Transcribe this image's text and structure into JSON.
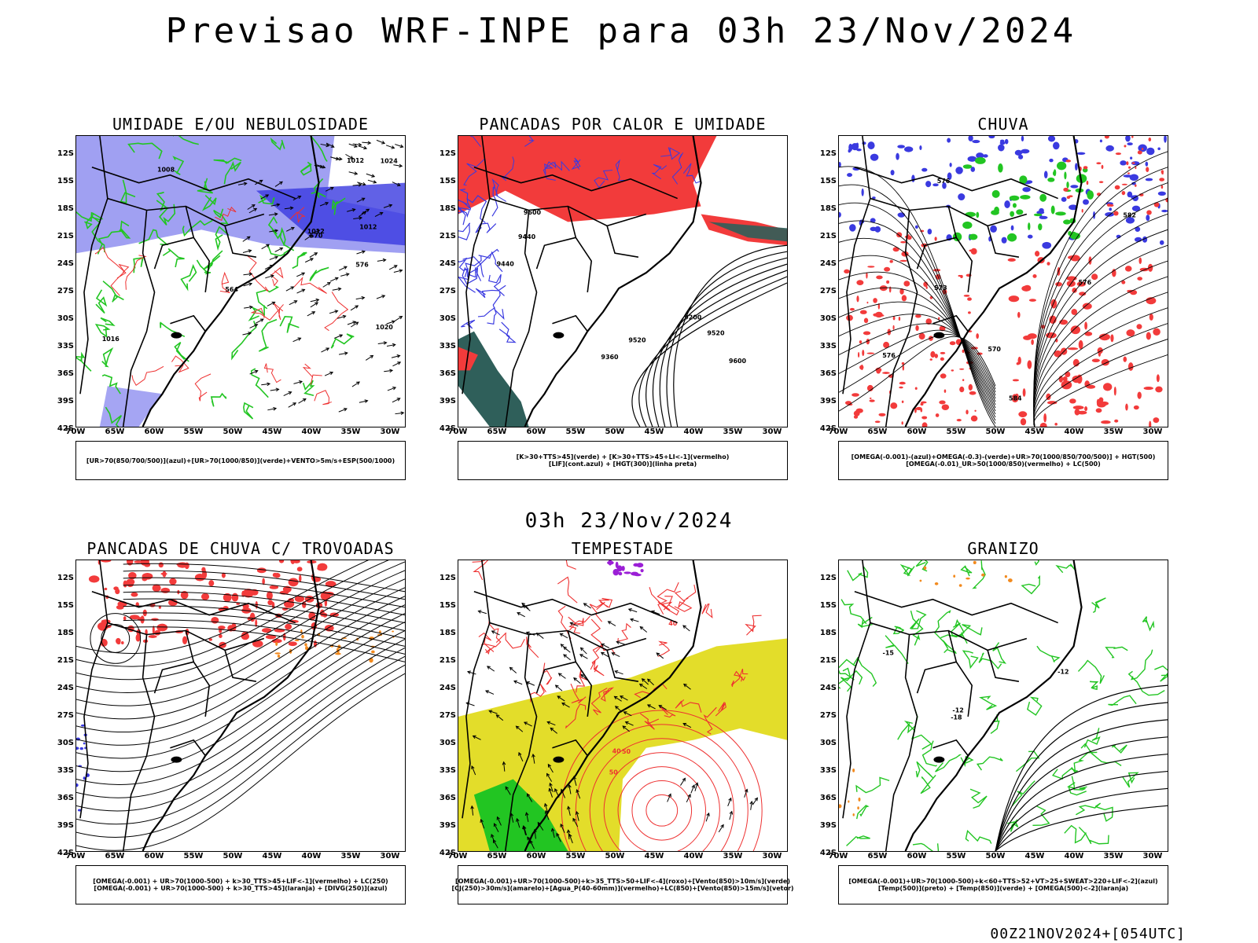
{
  "header": {
    "title": "Previsao WRF-INPE  para 03h 23/Nov/2024",
    "mid_title": "03h 23/Nov/2024",
    "footer_stamp": "00Z21NOV2024+[054UTC]"
  },
  "axes": {
    "lat_ticks": [
      "12S",
      "15S",
      "18S",
      "21S",
      "24S",
      "27S",
      "30S",
      "33S",
      "36S",
      "39S",
      "42S"
    ],
    "lon_ticks": [
      "70W",
      "65W",
      "60W",
      "55W",
      "50W",
      "45W",
      "40W",
      "35W",
      "30W"
    ]
  },
  "colors": {
    "blue_fill": "#8f8ff0",
    "blue_deep": "#3a3ae0",
    "green_line": "#22c522",
    "red_fill": "#f23b3b",
    "red_line": "#ee3030",
    "teal_fill": "#2f5f5a",
    "yellow_fill": "#e3dd2a",
    "orange_fill": "#f28a1e",
    "purple_fill": "#9b1fd6",
    "contour_black": "#000000"
  },
  "panels": [
    {
      "id": "umidade",
      "title": "UMIDADE E/OU NEBULOSIDADE",
      "legend": [
        "[UR>70(850/700/500)](azul)+[UR>70(1000/850)](verde)+VENTO>5m/s+ESP(500/1000)"
      ],
      "contour_labels": [
        "1012",
        "1012",
        "1020",
        "1008",
        "1016",
        "1012",
        "1024",
        "576",
        "570",
        "564"
      ]
    },
    {
      "id": "pancadas-calor",
      "title": "PANCADAS POR CALOR E UMIDADE",
      "legend": [
        "[K>30+TTS>45](verde) + [K>30+TTS>45+LI<-1](vermelho)",
        "[LIF](cont.azul) + [HGT(300)](linha preta)"
      ],
      "contour_labels": [
        "9600",
        "9520",
        "9440",
        "9360",
        "9200",
        "9600",
        "9520",
        "9440"
      ]
    },
    {
      "id": "chuva",
      "title": "CHUVA",
      "legend": [
        "[OMEGA(-0.001)-(azul)+OMEGA(-0.3)-(verde)+UR>70(1000/850/700/500)] + HGT(500)",
        "[OMEGA(-0.01)_UR>50(1000/850)(vermelho) + LC(500)"
      ],
      "contour_labels": [
        "576",
        "570",
        "582",
        "576",
        "576",
        "584",
        "573"
      ]
    },
    {
      "id": "pancadas-trovoadas",
      "title": "PANCADAS DE CHUVA C/ TROVOADAS",
      "legend": [
        "[OMEGA(-0.001) + UR>70(1000-500) + k>30_TTS>45+LIF<-1](vermelho) + LC(250)",
        "[OMEGA(-0.001) + UR>70(1000-500) + k>30_TTS>45](laranja) + [DIVG(250)](azul)"
      ],
      "contour_labels": []
    },
    {
      "id": "tempestade",
      "title": "TEMPESTADE",
      "legend": [
        "[OMEGA(-0.001)+UR>70(1000-500)+k>35_TTS>50+LIF<-4](roxo)+[Vento(850)>10m/s](verde)",
        "[CJ(250)>30m/s](amarelo)+[Agua_P(40-60mm)](vermelho)+LC(850)+[Vento(850)>15m/s](vetor)"
      ],
      "contour_labels": [
        "50",
        "40",
        "50",
        "40"
      ]
    },
    {
      "id": "granizo",
      "title": "GRANIZO",
      "legend": [
        "[OMEGA(-0.001)+UR>70(1000-500)+k<60+TTS>52+VT>25+SWEAT>220+LIF<-2](azul)",
        "[Temp(500)](preto) + [Temp(850)](verde) + [OMEGA(500)<-2](laranja)"
      ],
      "contour_labels": [
        "-12",
        "-15",
        "-18",
        "-12"
      ]
    }
  ]
}
